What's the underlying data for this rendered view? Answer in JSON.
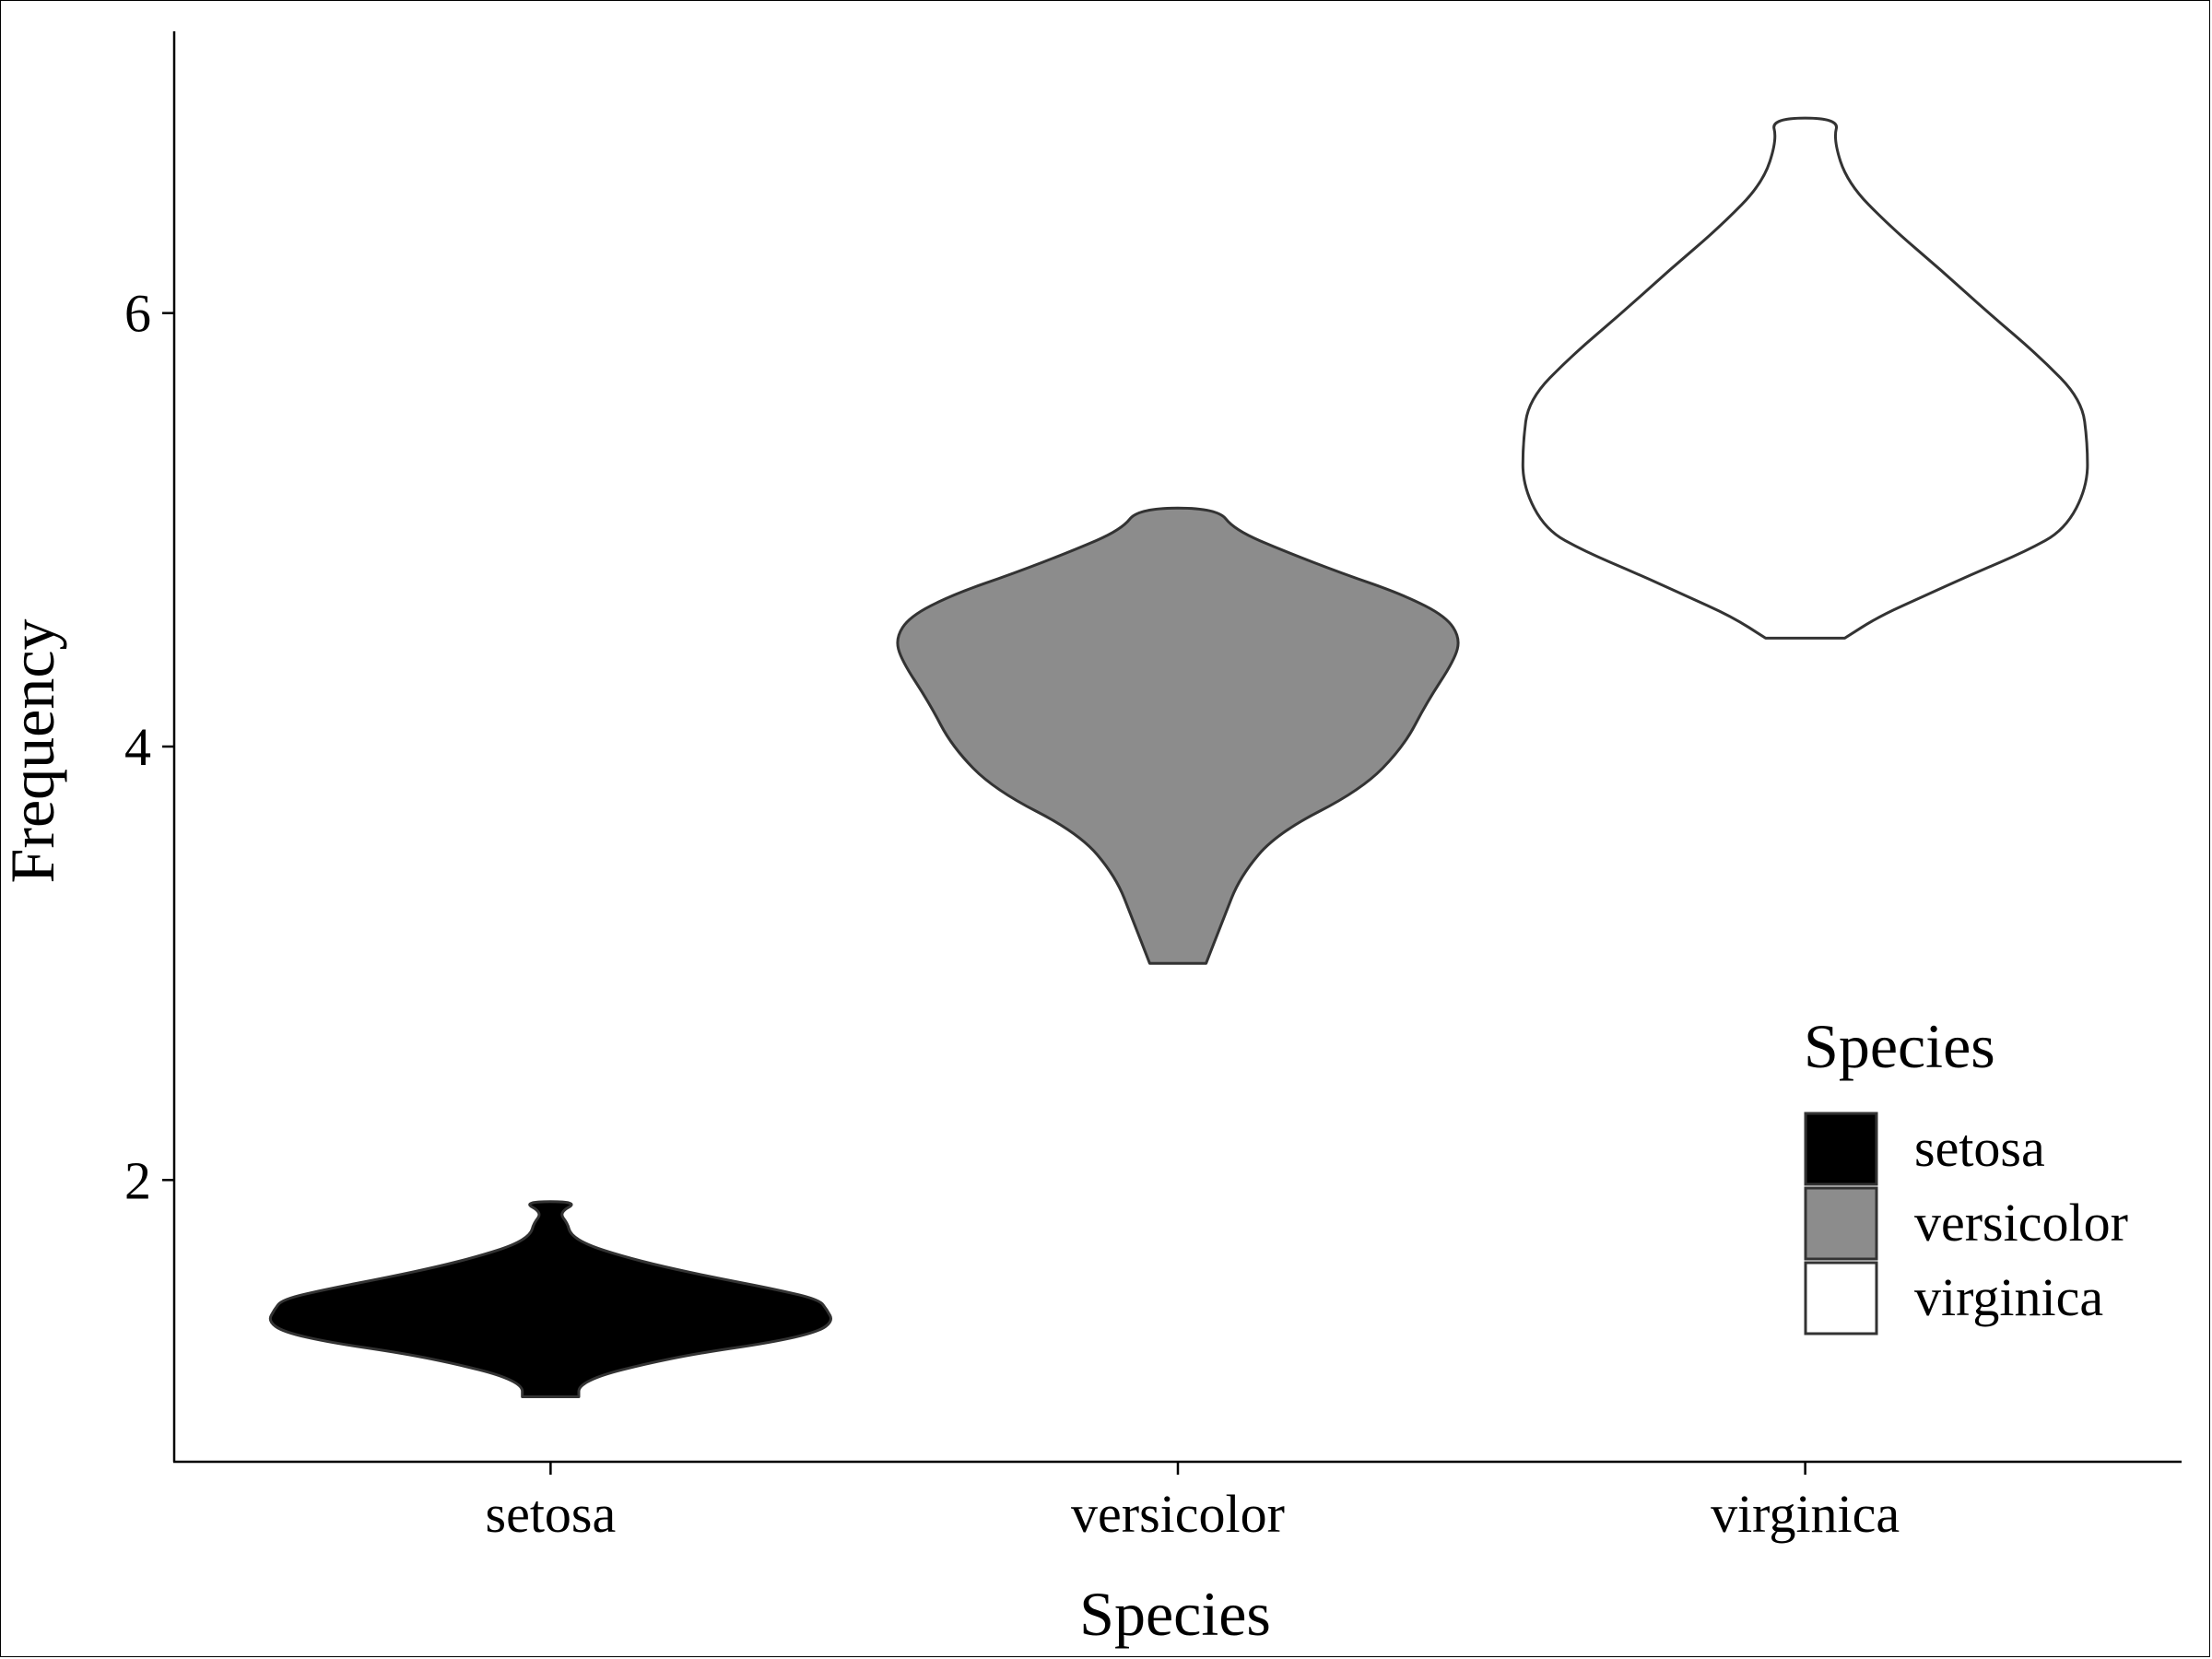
{
  "chart_data": {
    "type": "violin",
    "title": "",
    "xlabel": "Species",
    "ylabel": "Frequency",
    "ylim": [
      0.7,
      7.3
    ],
    "y_ticks": [
      2,
      4,
      6
    ],
    "categories": [
      "setosa",
      "versicolor",
      "virginica"
    ],
    "grid": false,
    "legend": {
      "title": "Species",
      "position": "bottom-right",
      "entries": [
        {
          "label": "setosa",
          "color": "#000000"
        },
        {
          "label": "versicolor",
          "color": "#8c8c8c"
        },
        {
          "label": "virginica",
          "color": "#ffffff"
        }
      ]
    },
    "series": [
      {
        "category": "setosa",
        "color": "#000000",
        "min": 1.0,
        "max": 1.9,
        "density_profile": [
          [
            1.0,
            0.1
          ],
          [
            1.05,
            0.1
          ],
          [
            1.1,
            0.18
          ],
          [
            1.15,
            0.33
          ],
          [
            1.2,
            0.52
          ],
          [
            1.25,
            0.78
          ],
          [
            1.3,
            0.95
          ],
          [
            1.35,
            1.0
          ],
          [
            1.4,
            0.98
          ],
          [
            1.45,
            0.95
          ],
          [
            1.5,
            0.78
          ],
          [
            1.55,
            0.58
          ],
          [
            1.6,
            0.4
          ],
          [
            1.65,
            0.25
          ],
          [
            1.7,
            0.13
          ],
          [
            1.75,
            0.07
          ],
          [
            1.8,
            0.06
          ],
          [
            1.85,
            0.03
          ],
          [
            1.9,
            0.1
          ]
        ]
      },
      {
        "category": "versicolor",
        "color": "#8c8c8c",
        "min": 3.0,
        "max": 5.1,
        "density_profile": [
          [
            3.0,
            0.1
          ],
          [
            3.2,
            0.16
          ],
          [
            3.4,
            0.22
          ],
          [
            3.6,
            0.35
          ],
          [
            3.8,
            0.65
          ],
          [
            4.0,
            0.8
          ],
          [
            4.2,
            0.88
          ],
          [
            4.4,
            0.98
          ],
          [
            4.5,
            1.0
          ],
          [
            4.6,
            0.95
          ],
          [
            4.7,
            0.8
          ],
          [
            4.8,
            0.58
          ],
          [
            4.9,
            0.38
          ],
          [
            5.0,
            0.2
          ],
          [
            5.1,
            0.14
          ]
        ]
      },
      {
        "category": "virginica",
        "color": "#ffffff",
        "min": 4.5,
        "max": 6.9,
        "density_profile": [
          [
            4.5,
            0.14
          ],
          [
            4.6,
            0.26
          ],
          [
            4.7,
            0.43
          ],
          [
            4.8,
            0.6
          ],
          [
            4.9,
            0.78
          ],
          [
            5.0,
            0.92
          ],
          [
            5.2,
            1.0
          ],
          [
            5.4,
            1.0
          ],
          [
            5.6,
            0.98
          ],
          [
            5.8,
            0.83
          ],
          [
            6.0,
            0.65
          ],
          [
            6.2,
            0.48
          ],
          [
            6.4,
            0.3
          ],
          [
            6.6,
            0.15
          ],
          [
            6.8,
            0.1
          ],
          [
            6.9,
            0.12
          ]
        ]
      }
    ]
  }
}
